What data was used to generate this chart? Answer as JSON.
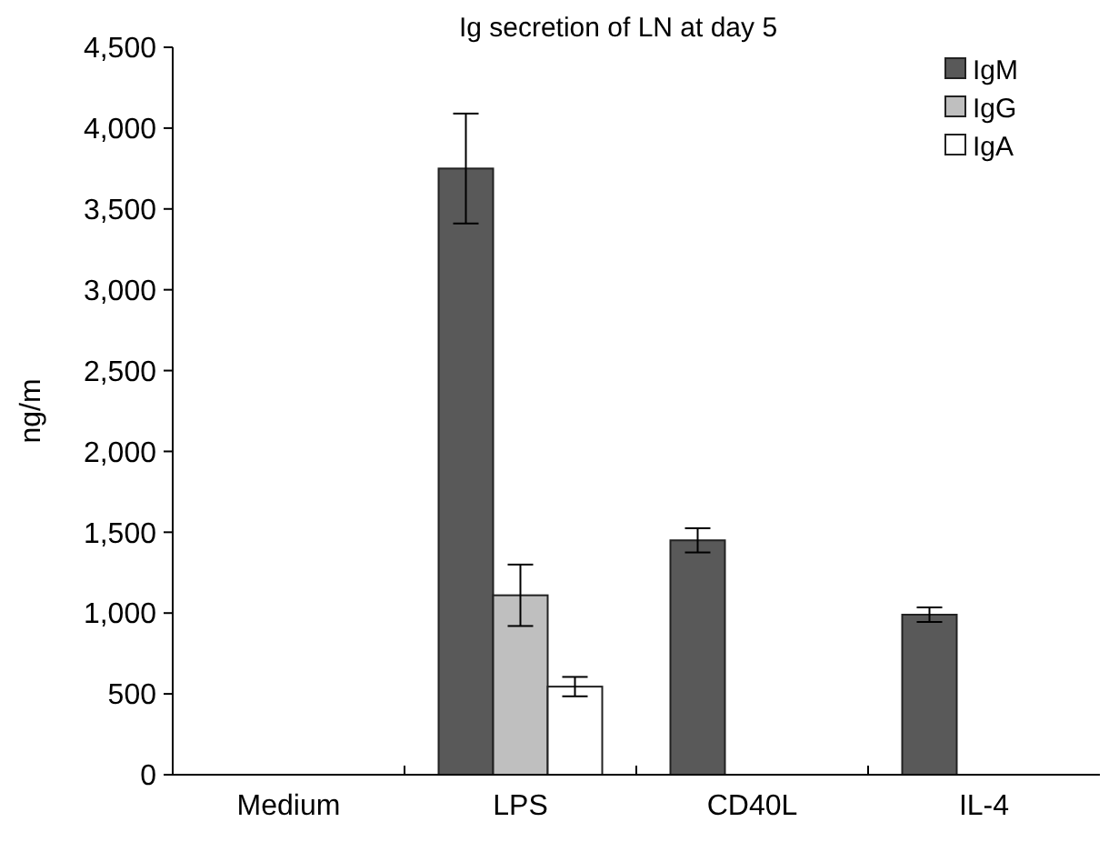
{
  "chart_data": {
    "type": "bar",
    "title": "Ig secretion of LN at day 5",
    "ylabel": "ng/m",
    "categories": [
      "Medium",
      "LPS",
      "CD40L",
      "IL-4"
    ],
    "series": [
      {
        "name": "IgM",
        "color": "#595959",
        "values": [
          null,
          3750,
          1450,
          990
        ],
        "errors": [
          null,
          340,
          75,
          45
        ]
      },
      {
        "name": "IgG",
        "color": "#bfbfbf",
        "values": [
          null,
          1110,
          null,
          null
        ],
        "errors": [
          null,
          190,
          null,
          null
        ]
      },
      {
        "name": "IgA",
        "color": "#ffffff",
        "values": [
          null,
          545,
          null,
          null
        ],
        "errors": [
          null,
          60,
          null,
          null
        ]
      }
    ],
    "ylim": [
      0,
      4500
    ],
    "yticks": [
      {
        "value": 0,
        "label": "0"
      },
      {
        "value": 500,
        "label": "500"
      },
      {
        "value": 1000,
        "label": "1,000"
      },
      {
        "value": 1500,
        "label": "1,500"
      },
      {
        "value": 2000,
        "label": "2,000"
      },
      {
        "value": 2500,
        "label": "2,500"
      },
      {
        "value": 3000,
        "label": "3,000"
      },
      {
        "value": 3500,
        "label": "3,500"
      },
      {
        "value": 4000,
        "label": "4,000"
      },
      {
        "value": 4500,
        "label": "4,500"
      }
    ],
    "grid": false,
    "legend": "top right"
  }
}
